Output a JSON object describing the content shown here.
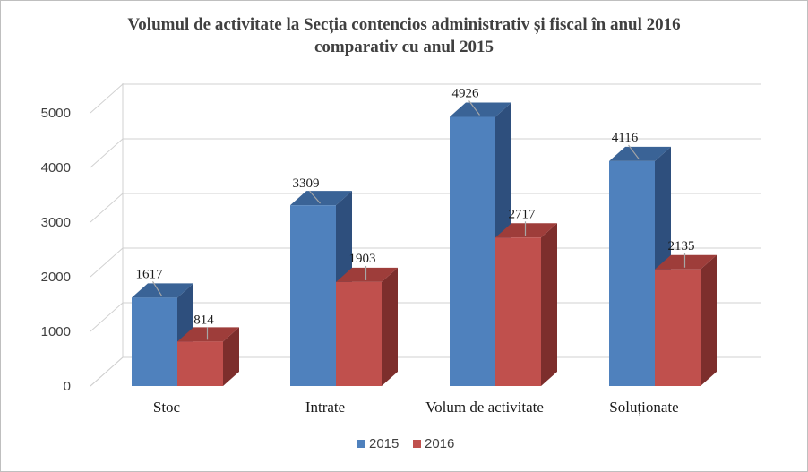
{
  "chart_data": {
    "type": "bar",
    "title_line1": "Volumul de activitate la Secția contencios administrativ și fiscal în anul 2016",
    "title_line2": "comparativ cu anul 2015",
    "categories": [
      "Stoc",
      "Intrate",
      "Volum de activitate",
      "Soluționate"
    ],
    "series": [
      {
        "name": "2015",
        "values": [
          1617,
          3309,
          4926,
          4116
        ],
        "color": "#4f81bd",
        "side": "#2e4f7d",
        "top": "#3a6396"
      },
      {
        "name": "2016",
        "values": [
          814,
          1903,
          2717,
          2135
        ],
        "color": "#c0504d",
        "side": "#7d2e2c",
        "top": "#9e3d3a"
      }
    ],
    "yticks": [
      0,
      1000,
      2000,
      3000,
      4000,
      5000
    ],
    "ylim": [
      0,
      5000
    ],
    "grid": true,
    "legend": "bottom"
  }
}
